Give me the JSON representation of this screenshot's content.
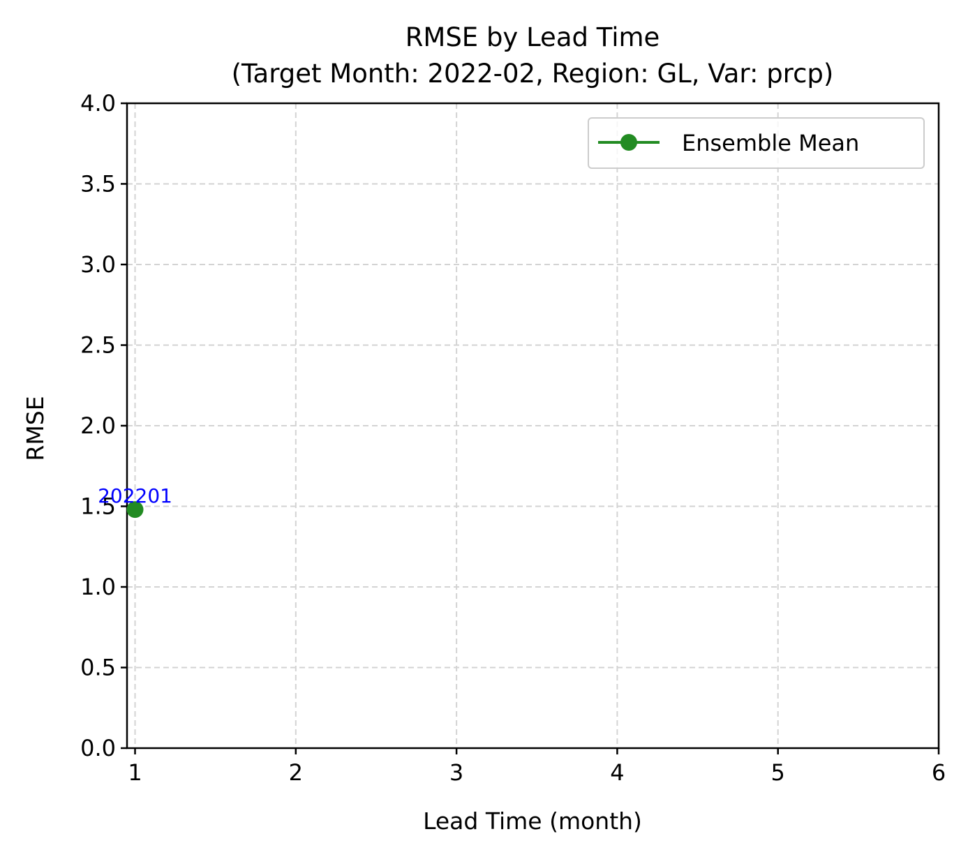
{
  "chart_data": {
    "type": "line",
    "title": "RMSE by Lead Time",
    "subtitle": "(Target Month: 2022-02, Region: GL, Var: prcp)",
    "xlabel": "Lead Time (month)",
    "ylabel": "RMSE",
    "xlim": [
      0.95,
      6
    ],
    "ylim": [
      0,
      4
    ],
    "xticks": [
      1,
      2,
      3,
      4,
      5,
      6
    ],
    "yticks": [
      0,
      0.5,
      1,
      1.5,
      2,
      2.5,
      3,
      3.5,
      4
    ],
    "xtick_labels": [
      "1",
      "2",
      "3",
      "4",
      "5",
      "6"
    ],
    "ytick_labels": [
      "0.0",
      "0.5",
      "1.0",
      "1.5",
      "2.0",
      "2.5",
      "3.0",
      "3.5",
      "4.0"
    ],
    "grid": true,
    "grid_style": "dashed",
    "legend_position": "upper right",
    "series": [
      {
        "name": "Ensemble Mean",
        "color": "#228B22",
        "marker": "circle",
        "x": [
          1
        ],
        "y": [
          1.48
        ],
        "point_labels": [
          "202201"
        ],
        "point_label_color": "#0000FF"
      }
    ]
  }
}
